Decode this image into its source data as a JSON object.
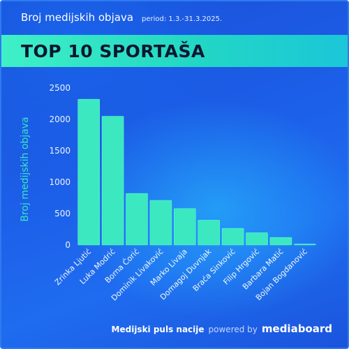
{
  "header": {
    "subtitle": "Broj medijskih objava",
    "period": "period: 1.3.-31.3.2025."
  },
  "banner": {
    "title": "TOP 10 SPORTAŠA"
  },
  "footer": {
    "tagline": "Medijski puls nacije",
    "powered": "powered by",
    "brand": "mediaboard"
  },
  "colors": {
    "bar": "#3be8c0",
    "bar_stroke": "#5ff7d5",
    "banner": "#2ee6c4",
    "background": "#1c5fe8",
    "text": "#ffffff",
    "ylabel": "#36e6c6"
  },
  "chart_data": {
    "type": "bar",
    "title": "",
    "xlabel": "",
    "ylabel": "Broj medijskih objava",
    "ylim": [
      0,
      2500
    ],
    "yticks": [
      0,
      500,
      1000,
      1500,
      2000,
      2500
    ],
    "grid": false,
    "categories": [
      "Zrinka Ljutić",
      "Luka Modrić",
      "Borna Ćorić",
      "Dominik Livaković",
      "Marko Livaja",
      "Domagoj Duvnjak",
      "Braća Sinković",
      "Filip Hrgović",
      "Barbara Matić",
      "Bojan Bogdanović"
    ],
    "values": [
      2320,
      2050,
      820,
      710,
      580,
      395,
      265,
      195,
      120,
      15
    ]
  }
}
